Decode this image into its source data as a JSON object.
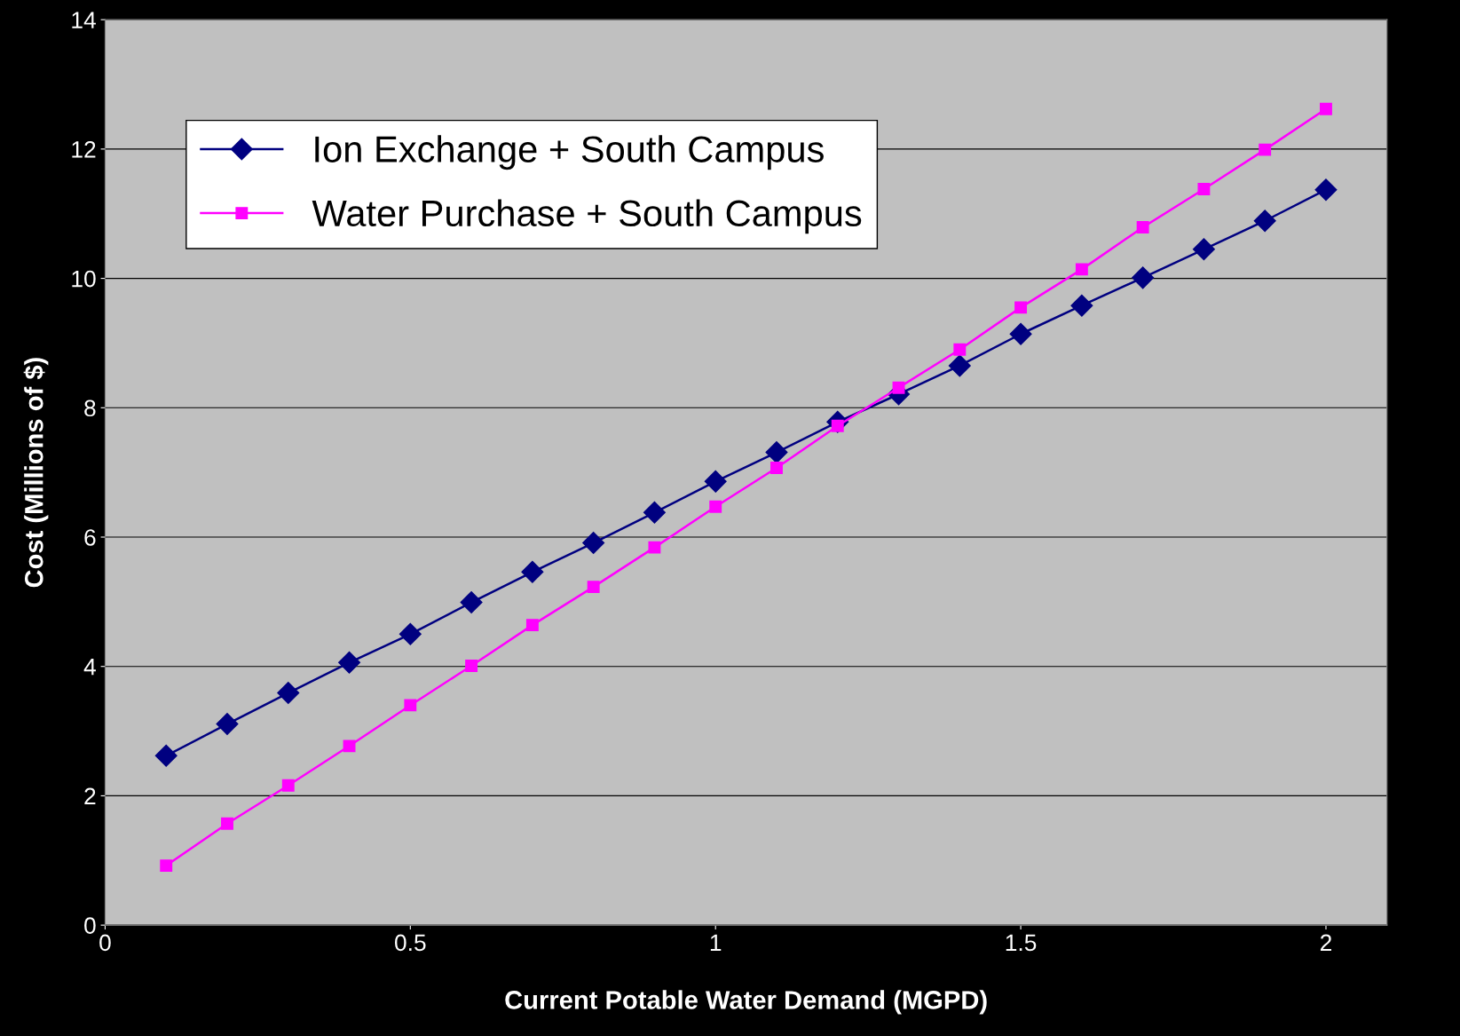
{
  "chart_data": {
    "type": "line",
    "xlabel": "Current Potable Water Demand (MGPD)",
    "ylabel": "Cost (Millions of $)",
    "x": [
      0.1,
      0.2,
      0.3,
      0.4,
      0.5,
      0.6,
      0.7,
      0.8,
      0.9,
      1.0,
      1.1,
      1.2,
      1.3,
      1.4,
      1.5,
      1.6,
      1.7,
      1.8,
      1.9,
      2.0
    ],
    "series": [
      {
        "name": "Ion Exchange + South Campus",
        "color": "#000080",
        "marker": "diamond",
        "values": [
          2.62,
          3.11,
          3.59,
          4.06,
          4.5,
          4.99,
          5.46,
          5.91,
          6.38,
          6.86,
          7.31,
          7.78,
          8.21,
          8.65,
          9.14,
          9.58,
          10.01,
          10.45,
          10.89,
          11.37
        ]
      },
      {
        "name": "Water Purchase + South Campus",
        "color": "#ff00ff",
        "marker": "square",
        "values": [
          0.92,
          1.57,
          2.16,
          2.77,
          3.4,
          4.01,
          4.64,
          5.23,
          5.84,
          6.47,
          7.07,
          7.72,
          8.31,
          8.9,
          9.55,
          10.14,
          10.79,
          11.38,
          11.99,
          12.62
        ]
      }
    ],
    "xlim": [
      0,
      2.1
    ],
    "xticks": [
      0,
      0.5,
      1,
      1.5,
      2
    ],
    "ylim": [
      0,
      14
    ],
    "yticks": [
      0,
      2,
      4,
      6,
      8,
      10,
      12,
      14
    ],
    "grid": "y",
    "legend": "top left",
    "line_style": "solid"
  }
}
